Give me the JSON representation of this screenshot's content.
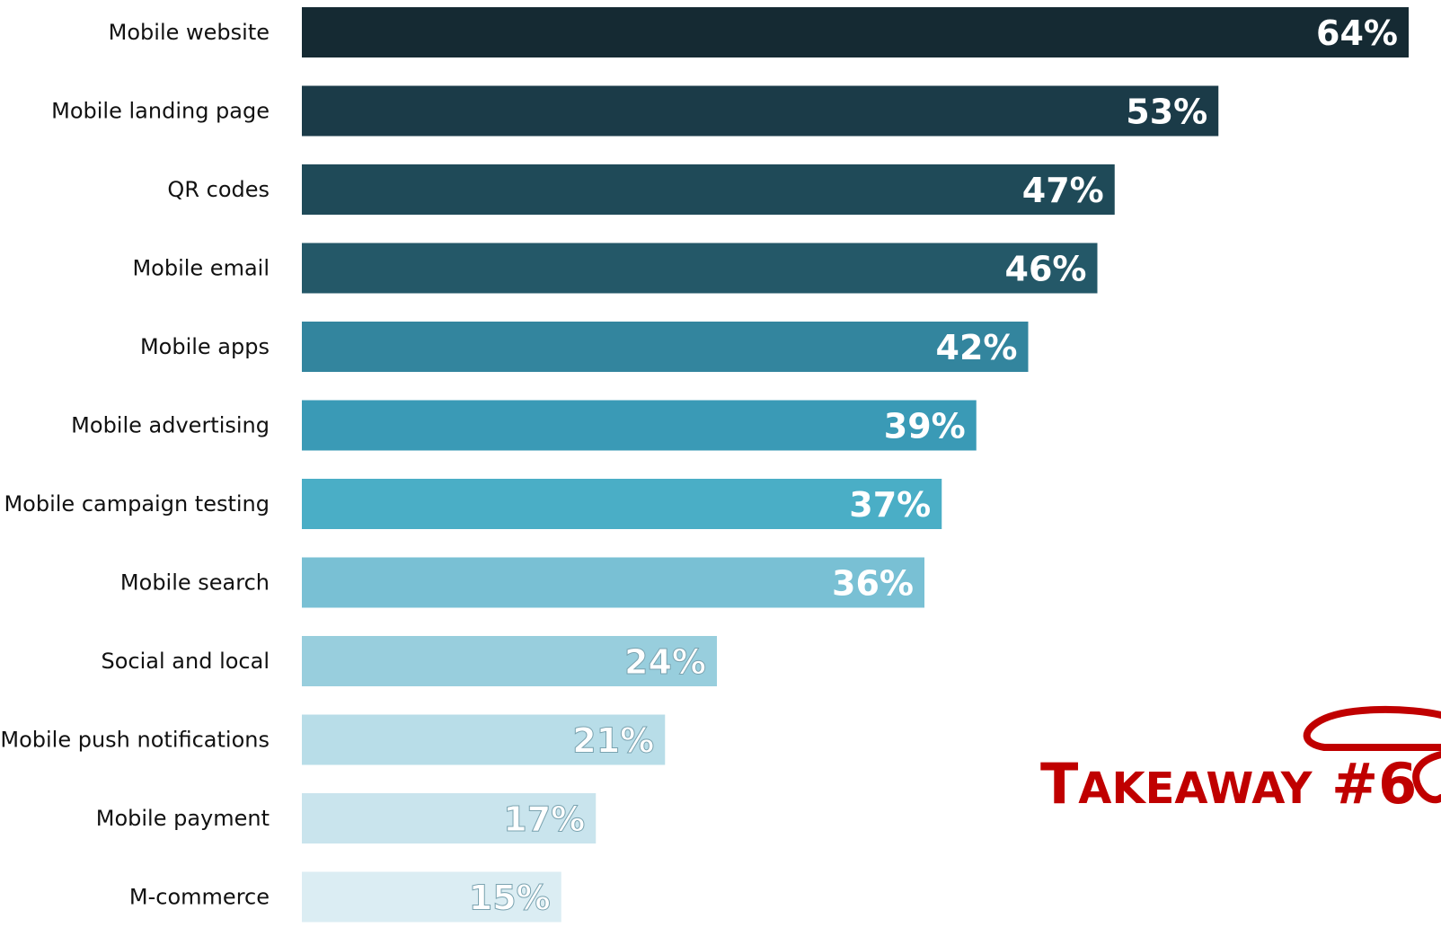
{
  "chart_data": {
    "type": "bar",
    "orientation": "horizontal",
    "categories": [
      "Mobile website",
      "Mobile landing page",
      "QR codes",
      "Mobile email",
      "Mobile apps",
      "Mobile advertising",
      "Mobile campaign testing",
      "Mobile search",
      "Social and local",
      "Mobile push notifications",
      "Mobile payment",
      "M-commerce"
    ],
    "values": [
      64,
      53,
      47,
      46,
      42,
      39,
      37,
      36,
      24,
      21,
      17,
      15
    ],
    "value_labels": [
      "64%",
      "53%",
      "47%",
      "46%",
      "42%",
      "39%",
      "37%",
      "36%",
      "24%",
      "21%",
      "17%",
      "15%"
    ],
    "colors": [
      "#152a33",
      "#1b3b48",
      "#1f4a58",
      "#245868",
      "#33859e",
      "#3a9ab6",
      "#4aaec6",
      "#79c0d4",
      "#98ceder",
      "#b8dde8",
      "#c9e4ed",
      "#dbedf3"
    ],
    "xlim": [
      0,
      64
    ],
    "grid": false,
    "legend": "none",
    "title": "",
    "xlabel": "",
    "ylabel": ""
  },
  "annotation": {
    "takeaway_initial": "T",
    "takeaway_rest": "AKEAWAY",
    "takeaway_number": "#6",
    "color": "#c00000"
  }
}
